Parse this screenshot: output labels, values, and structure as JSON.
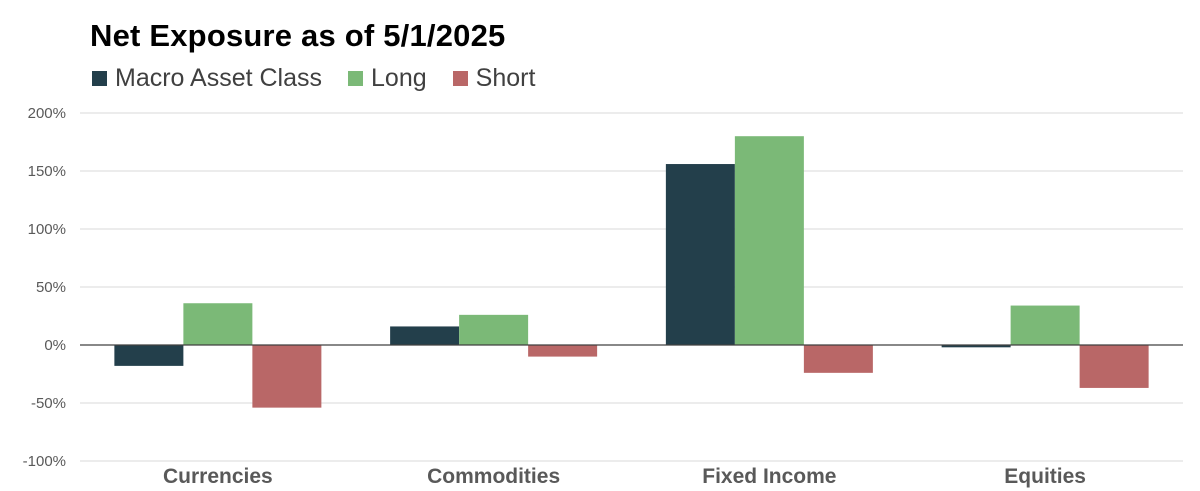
{
  "chart_data": {
    "type": "bar",
    "title": "Net Exposure as of 5/1/2025",
    "categories": [
      "Currencies",
      "Commodities",
      "Fixed Income",
      "Equities"
    ],
    "series": [
      {
        "name": "Macro Asset Class",
        "color": "#233f4b",
        "values": [
          -18,
          16,
          156,
          -2
        ]
      },
      {
        "name": "Long",
        "color": "#7bb977",
        "values": [
          36,
          26,
          180,
          34
        ]
      },
      {
        "name": "Short",
        "color": "#b96767",
        "values": [
          -54,
          -10,
          -24,
          -37
        ]
      }
    ],
    "yticks": [
      "200%",
      "150%",
      "100%",
      "50%",
      "0%",
      "-50%",
      "-100%"
    ],
    "ylim": [
      -100,
      200
    ],
    "grid": true,
    "legend_position": "top-left",
    "xlabel": "",
    "ylabel": ""
  }
}
